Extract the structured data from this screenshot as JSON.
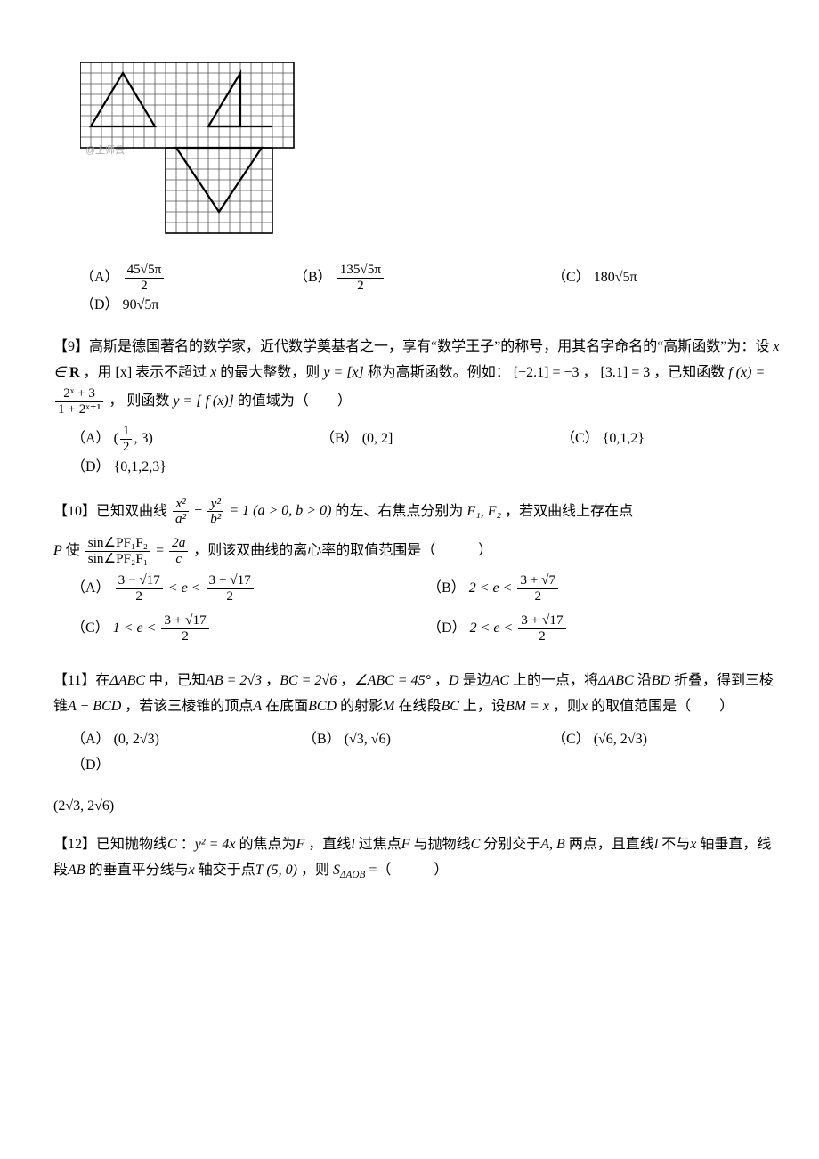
{
  "figure": {
    "cell": 12,
    "region1": {
      "cols": 20,
      "rows": 8,
      "ox": 0,
      "oy": 0
    },
    "region2": {
      "cols": 10,
      "rows": 8,
      "ox": 8,
      "oy": 8
    },
    "triangle1": [
      [
        1,
        6
      ],
      [
        4,
        1
      ],
      [
        7,
        6
      ]
    ],
    "triangle2": [
      [
        12,
        6
      ],
      [
        15,
        1
      ],
      [
        18,
        6
      ],
      [
        15,
        6
      ]
    ],
    "triangle3": [
      [
        9,
        8
      ],
      [
        13,
        14
      ],
      [
        17,
        8
      ]
    ],
    "watermark": "@上师云"
  },
  "q8": {
    "A_label": "（A）",
    "A_num": "45√5π",
    "A_den": "2",
    "B_label": "（B）",
    "B_num": "135√5π",
    "B_den": "2",
    "C_label": "（C）",
    "C_val": "180√5π",
    "D_label": "（D）",
    "D_val": "90√5π"
  },
  "q9": {
    "text1": "【9】高斯是德国著名的数学家，近代数学奠基者之一，享有“数学王子”的称号，用其名字命名的“高斯函数”为：设",
    "m1a": "x ∈ ",
    "m1b": "R",
    "text1b": "，用",
    "m2": "[x]",
    "text1c": "表示不超过",
    "m3": "x",
    "text1d": "的最大整数，则",
    "m4": "y = [x]",
    "text1e": "称为高斯函数。例如：",
    "m5": "[−2.1] = −3",
    "text2": "，",
    "m6": "[3.1] = 3",
    "text3": "，已知函数",
    "fx": "f (x) =",
    "f_num": "2ˣ + 3",
    "f_den": "1 + 2ˣ⁺¹",
    "text4": "， 则函数",
    "m7": "y = [ f (x)]",
    "text5": "的值域为（　　）",
    "A_label": "（A）",
    "A_val_l": "(",
    "A_num": "1",
    "A_den": "2",
    "A_val_r": ", 3)",
    "B_label": "（B）",
    "B_val": "(0, 2]",
    "C_label": "（C）",
    "C_val": "{0,1,2}",
    "D_label": "（D）",
    "D_val": "{0,1,2,3}"
  },
  "q10": {
    "text1": "【10】已知双曲线",
    "eq1_t1n": "x²",
    "eq1_t1d": "a²",
    "eq1_m": " − ",
    "eq1_t2n": "y²",
    "eq1_t2d": "b²",
    "eq1_r": " = 1 (a > 0, b > 0)",
    "text2": "的左、右焦点分别为",
    "m1": "F₁, F₂",
    "text3": "，若双曲线上存在点",
    "m2": "P",
    "text4": " 使 ",
    "r_num": "sin∠PF₁F₂",
    "r_den": "sin∠PF₂F₁",
    "r_eq": " = ",
    "r2_num": "2a",
    "r2_den": "c",
    "text5": "，则该双曲线的离心率的取值范围是（　　　）",
    "A_label": "（A）",
    "A_l_num": "3 − √17",
    "A_l_den": "2",
    "A_mid": " < e < ",
    "A_r_num": "3 + √17",
    "A_r_den": "2",
    "B_label": "（B）",
    "B_l": "2 < e < ",
    "B_r_num": "3 + √7",
    "B_r_den": "2",
    "C_label": "（C）",
    "C_l": "1 < e < ",
    "C_r_num": "3 + √17",
    "C_r_den": "2",
    "D_label": "（D）",
    "D_l": "2 < e < ",
    "D_r_num": "3 + √17",
    "D_r_den": "2"
  },
  "q11": {
    "text1": "【11】在",
    "m1": "ΔABC",
    "text2": "中，已知",
    "m2": "AB = 2√3",
    "text3": "，",
    "m3": "BC = 2√6",
    "text4": "，",
    "m4": "∠ABC = 45°",
    "text5": "，",
    "m5": "D",
    "text6": "是边",
    "m6": "AC",
    "text7": "上的一点，将",
    "m7": "ΔABC",
    "text8": "沿",
    "m8": "BD",
    "text9": "折叠，得到三棱锥",
    "m9": "A − BCD",
    "text10": "，若该三棱锥的顶点",
    "m10": "A",
    "text11": "在底面",
    "m11": "BCD",
    "text12": "的射影",
    "m12": "M",
    "text13": "在线段",
    "m13": "BC",
    "text14": "上，设",
    "m14": "BM = x",
    "text15": "，则",
    "m15": "x",
    "text16": "的取值范围是（　　）",
    "A_label": "（A）",
    "A_val": "(0, 2√3)",
    "B_label": "（B）",
    "B_val": "(√3, √6)",
    "C_label": "（C）",
    "C_val": "(√6, 2√3)",
    "D_label": "（D）",
    "D_val": "",
    "D_line": "(2√3, 2√6)"
  },
  "q12": {
    "text1": "【12】已知抛物线",
    "m1": "C",
    "text2": "：",
    "m2": "y² = 4x",
    "text3": "的焦点为",
    "m3": "F",
    "text4": "，直线",
    "m4": "l",
    "text5": "过焦点",
    "m5": "F",
    "text6": "与抛物线",
    "m6": "C",
    "text7": "分别交于",
    "m7": "A, B",
    "text8": "两点，且直线",
    "m8": "l",
    "text9": "不与",
    "m9": "x",
    "text10": "轴垂直，线段",
    "m10": "AB",
    "text11": "的垂直平分线与",
    "m11": "x",
    "text12": "轴交于点",
    "m12": "T (5, 0)",
    "text13": "，则",
    "m13_pre": "S",
    "m13_sub": "ΔAOB",
    "text14": " =（　　　）"
  }
}
